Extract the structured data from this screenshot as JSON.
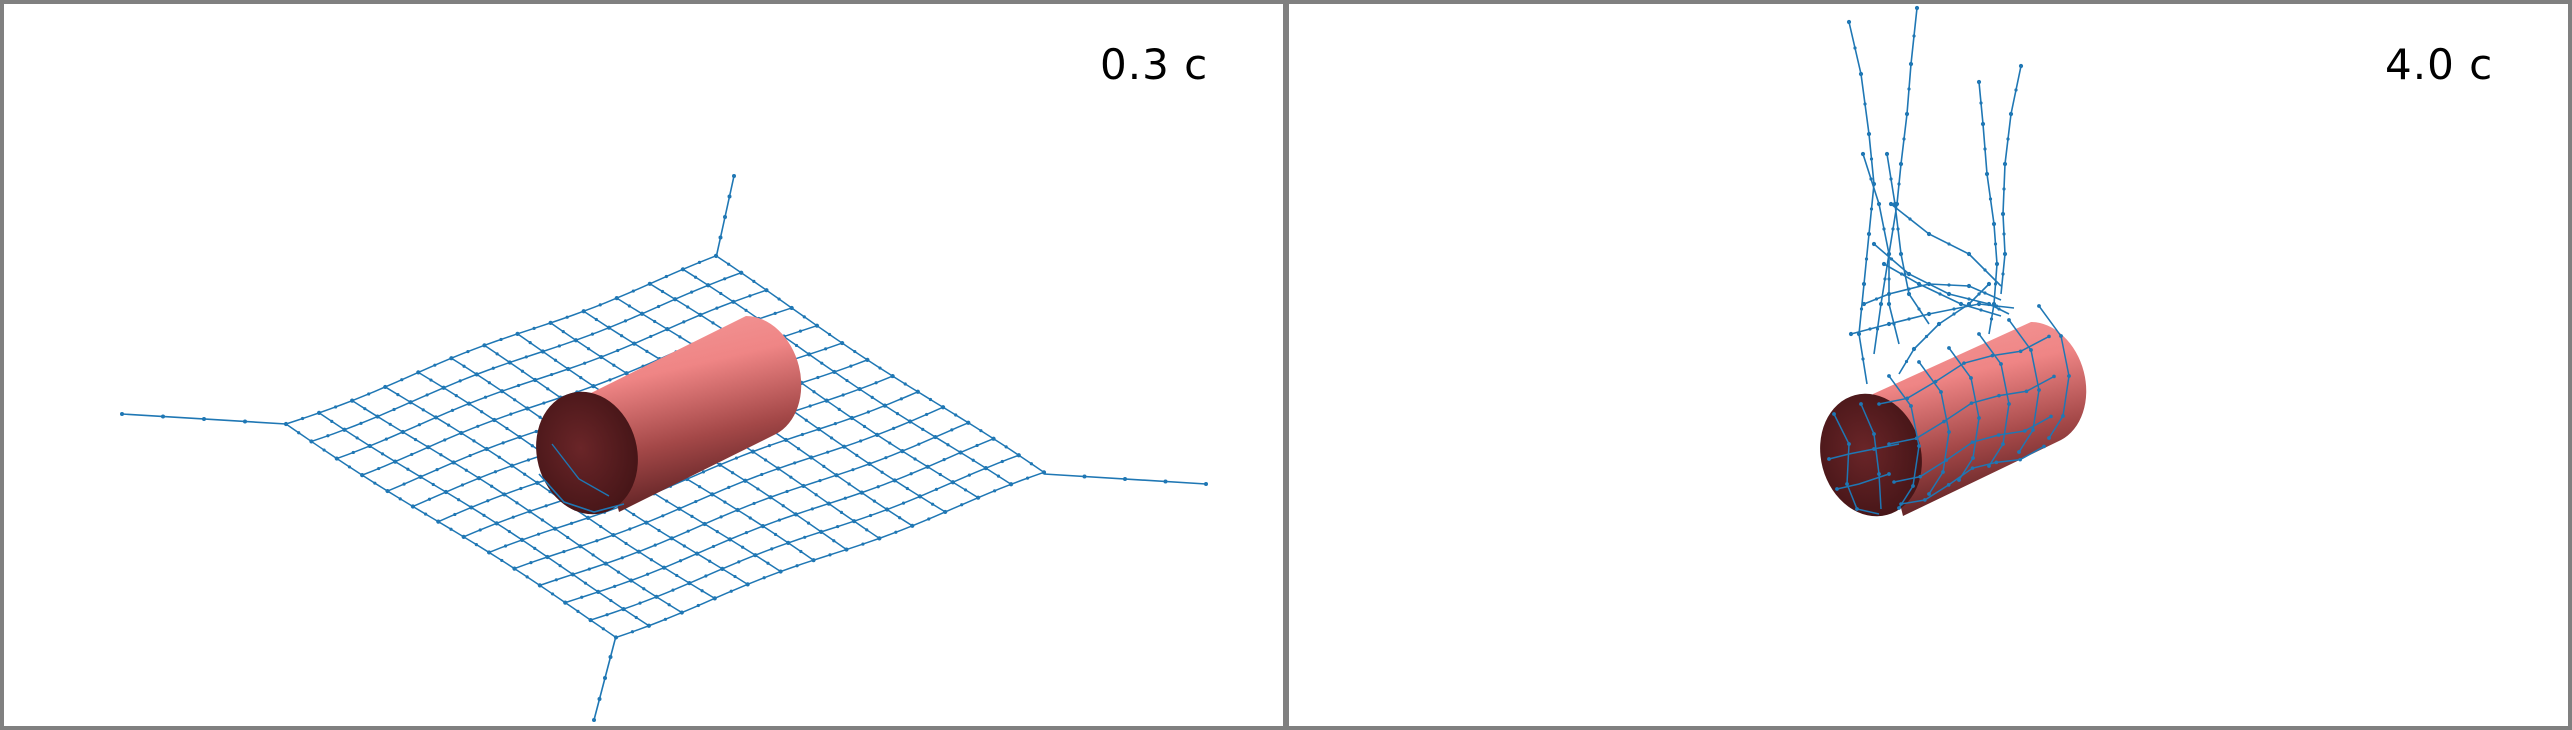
{
  "panels": [
    {
      "label": "0.3 c",
      "state": "net-flat-around-cylinder"
    },
    {
      "label": "4.0 c",
      "state": "net-wrapped-around-cylinder"
    }
  ],
  "colors": {
    "net": "#1f77b4",
    "cylinder_light": "#f08080",
    "cylinder_dark": "#5a1c1f",
    "frame": "#808080"
  }
}
